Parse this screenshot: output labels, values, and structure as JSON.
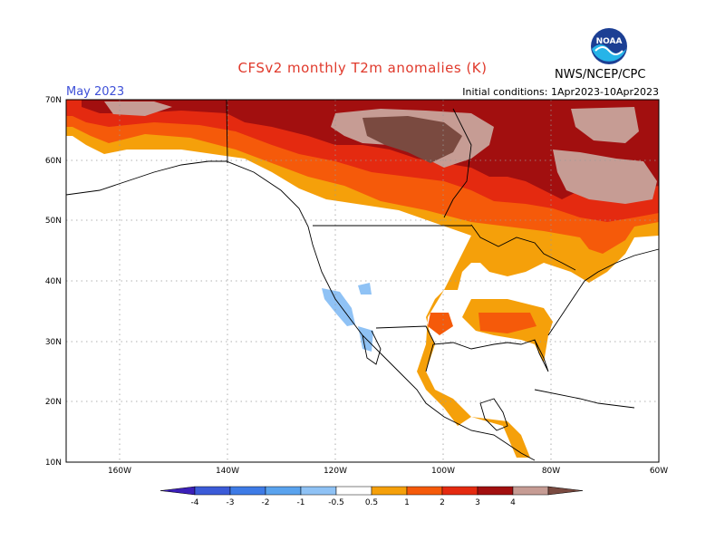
{
  "header": {
    "title": "CFSv2 monthly T2m anomalies (K)",
    "month": "May 2023",
    "initial_conditions": "Initial conditions: 1Apr2023-10Apr2023",
    "agency": "NWS/NCEP/CPC",
    "logo_text": "NOAA"
  },
  "axes": {
    "lat_labels": [
      "70N",
      "60N",
      "50N",
      "40N",
      "30N",
      "20N",
      "10N"
    ],
    "lon_labels": [
      "160W",
      "140W",
      "120W",
      "100W",
      "80W",
      "60W"
    ]
  },
  "colorbar": {
    "labels": [
      "-4",
      "-3",
      "-2",
      "-1",
      "-0.5",
      "0.5",
      "1",
      "2",
      "3",
      "4"
    ],
    "colors": [
      "#3b1fb8",
      "#3b5bd8",
      "#3e7be6",
      "#5aa3ee",
      "#8fc2f5",
      "#ffffff",
      "#f5a00a",
      "#f55a0a",
      "#e42a10",
      "#a20f0f",
      "#c69c94",
      "#7a4a40"
    ]
  },
  "map": {
    "region": "North America",
    "projection": "cylindrical",
    "lat_range": [
      10,
      70
    ],
    "lon_range": [
      -170,
      -60
    ],
    "grid": true,
    "dominant_signal": "warm anomalies across Canada, Alaska coast and eastern/southern USA and Mexico; small cool anomalies over California"
  }
}
